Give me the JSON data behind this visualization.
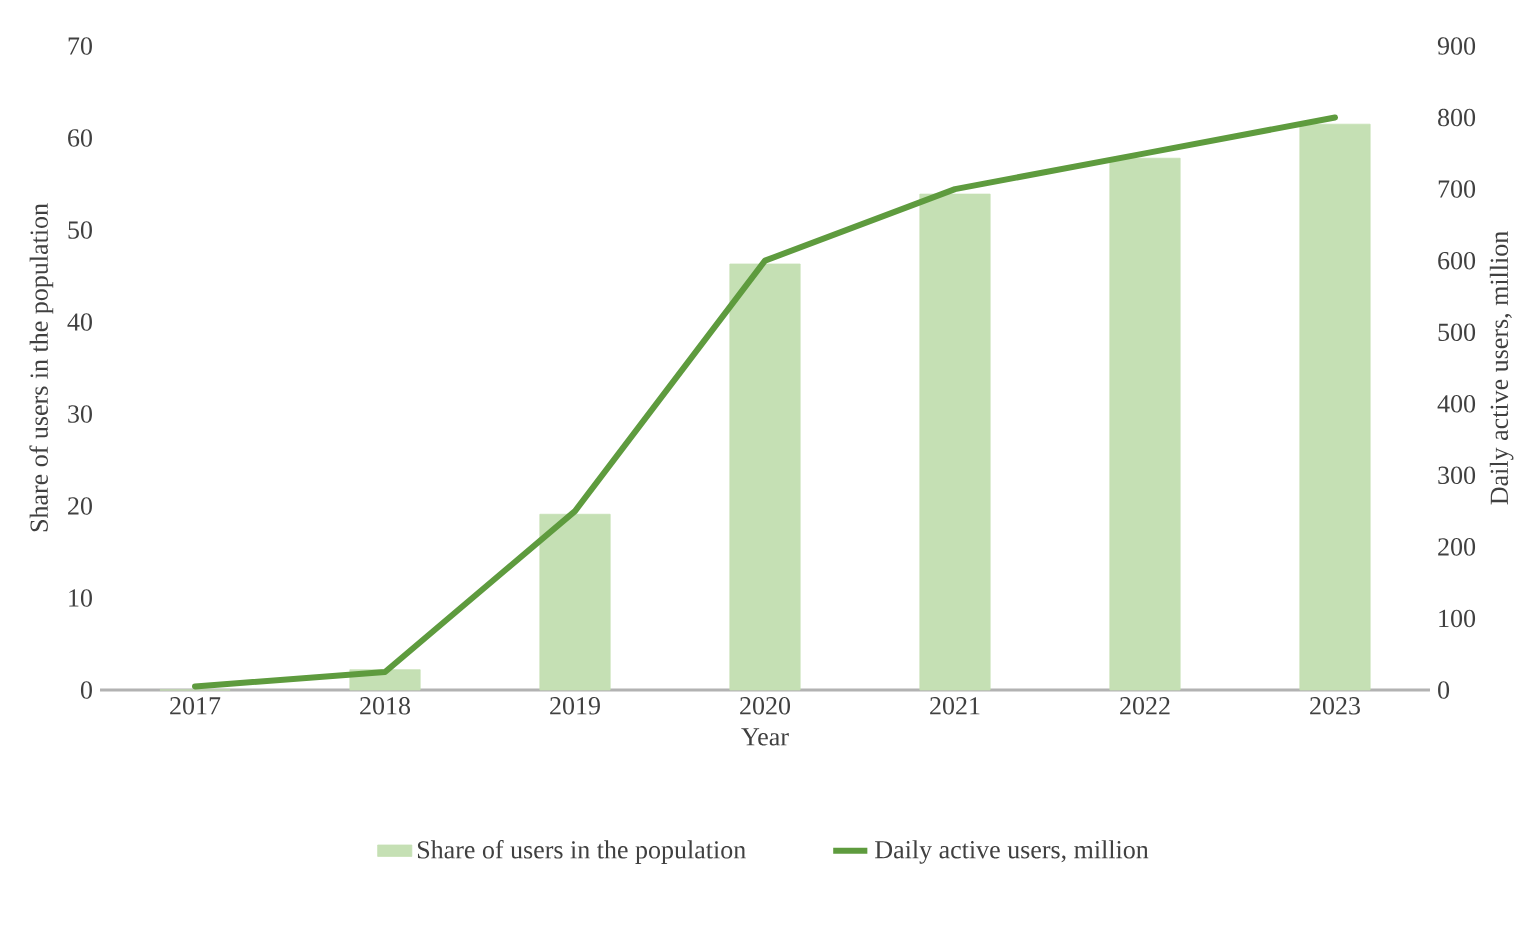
{
  "chart_data": {
    "type": "bar",
    "xlabel": "Year",
    "ylabel": "Share of users in the population",
    "y2label": "Daily active users, million",
    "categories": [
      "2017",
      "2018",
      "2019",
      "2020",
      "2021",
      "2022",
      "2023"
    ],
    "series": [
      {
        "name": "Share of users in the population",
        "color": "#c5e0b4",
        "values": [
          0,
          2.2,
          19.1,
          46.3,
          53.9,
          57.8,
          61.5
        ]
      },
      {
        "name": "Daily active users, million",
        "type": "line",
        "axis": "y2",
        "color": "#5e9b3e",
        "values": [
          5,
          25,
          250,
          600,
          700,
          750,
          800
        ]
      }
    ],
    "ylim": [
      0,
      70
    ],
    "yticks": [
      0,
      10,
      20,
      30,
      40,
      50,
      60,
      70
    ],
    "y2lim": [
      0,
      900
    ],
    "y2ticks": [
      0,
      100,
      200,
      300,
      400,
      500,
      600,
      700,
      800,
      900
    ],
    "grid": false,
    "legend": "bottom",
    "marker": "none",
    "line_style": "solid"
  }
}
